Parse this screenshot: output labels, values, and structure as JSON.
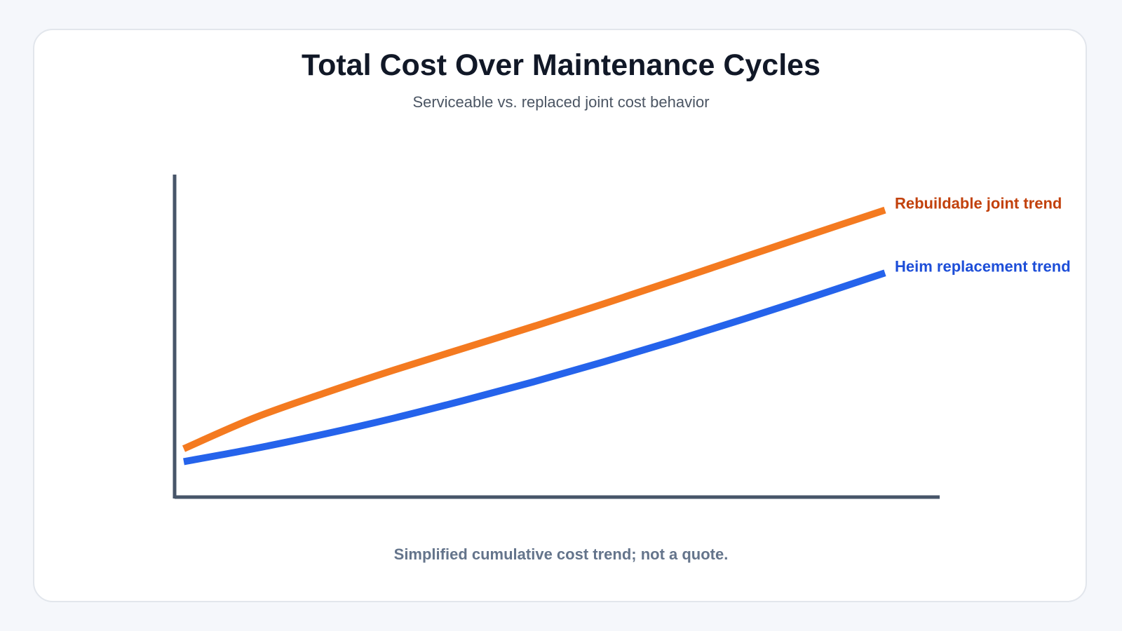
{
  "title": "Total Cost Over Maintenance Cycles",
  "subtitle": "Serviceable vs. replaced joint cost behavior",
  "note": "Simplified cumulative cost trend; not a quote.",
  "chart_data": {
    "type": "line",
    "title": "Total Cost Over Maintenance Cycles",
    "subtitle": "Serviceable vs. replaced joint cost behavior",
    "xlabel": "",
    "ylabel": "",
    "grid": false,
    "legend": "direct labels at line ends (right)",
    "x": [
      0,
      1,
      2,
      3,
      4,
      5,
      6,
      7,
      8,
      9,
      10
    ],
    "xlim": [
      0,
      10.5
    ],
    "ylim": [
      0,
      100
    ],
    "series": [
      {
        "name": "Rebuildable joint trend",
        "color": "#f47a20",
        "label_color": "#c2410c",
        "values": [
          15,
          24.5,
          32.2,
          39.4,
          46.2,
          53,
          60,
          67.2,
          74.5,
          81.8,
          89
        ]
      },
      {
        "name": "Heim replacement trend",
        "color": "#2563eb",
        "label_color": "#1d4ed8",
        "values": [
          11,
          15,
          19.5,
          24.5,
          30,
          35.8,
          42,
          48.5,
          55.3,
          62.3,
          69.5
        ]
      }
    ]
  }
}
